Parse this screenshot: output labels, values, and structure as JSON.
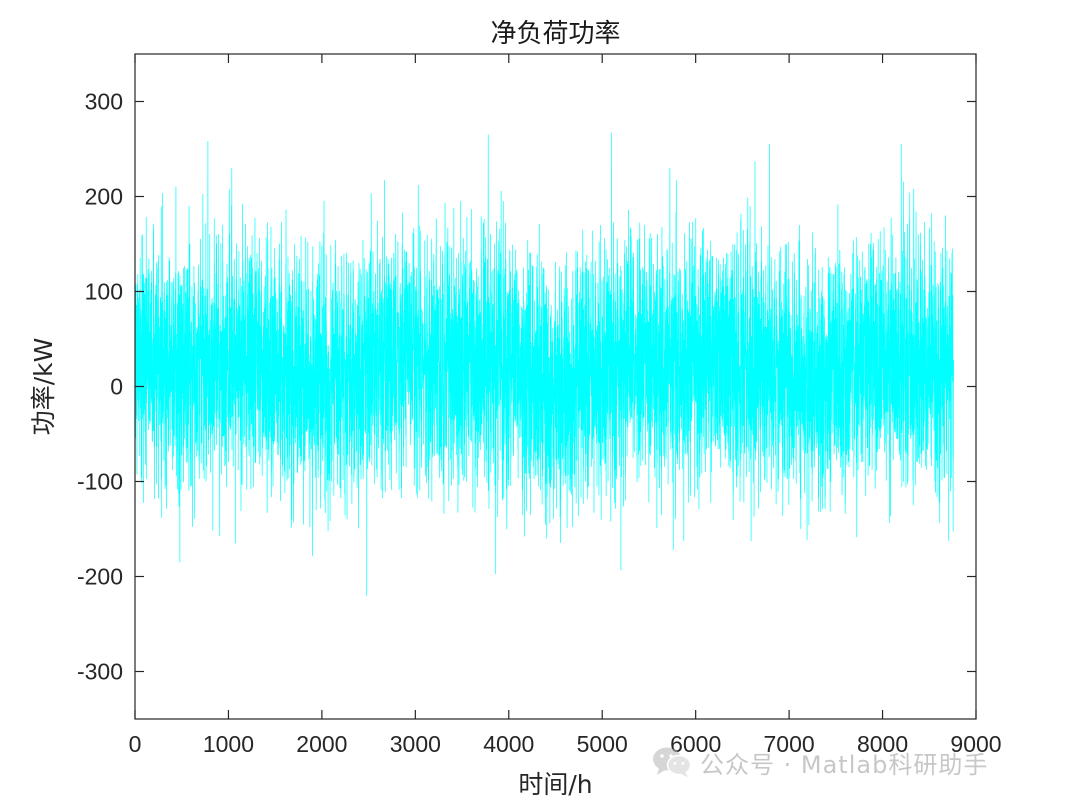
{
  "chart_data": {
    "type": "line",
    "title": "净负荷功率",
    "xlabel": "时间/h",
    "ylabel": "功率/kW",
    "xlim": [
      0,
      9000
    ],
    "ylim": [
      -350,
      350
    ],
    "xticks": [
      0,
      1000,
      2000,
      3000,
      4000,
      5000,
      6000,
      7000,
      8000,
      9000
    ],
    "yticks": [
      -300,
      -200,
      -100,
      0,
      100,
      200,
      300
    ],
    "xtick_labels": [
      "0",
      "1000",
      "2000",
      "3000",
      "4000",
      "5000",
      "6000",
      "7000",
      "8000",
      "9000"
    ],
    "ytick_labels": [
      "-300",
      "-200",
      "-100",
      "0",
      "100",
      "200",
      "300"
    ],
    "grid": false,
    "series": [
      {
        "color": "#00FFFF",
        "x_range": [
          1,
          8760
        ],
        "x_step": 1,
        "approx_min": -220,
        "approx_max": 267,
        "peaks": [
          {
            "x": 780,
            "y": 258
          },
          {
            "x": 3780,
            "y": 265
          },
          {
            "x": 5100,
            "y": 267
          },
          {
            "x": 6790,
            "y": 255
          },
          {
            "x": 8200,
            "y": 255
          }
        ],
        "troughs": [
          {
            "x": 480,
            "y": -185
          },
          {
            "x": 1900,
            "y": -178
          },
          {
            "x": 2480,
            "y": -220
          },
          {
            "x": 3860,
            "y": -197
          },
          {
            "x": 5200,
            "y": -193
          },
          {
            "x": 5760,
            "y": -172
          }
        ]
      }
    ]
  },
  "watermark": {
    "icon": "wechat-icon",
    "text": "公众号 · Matlab科研助手"
  }
}
